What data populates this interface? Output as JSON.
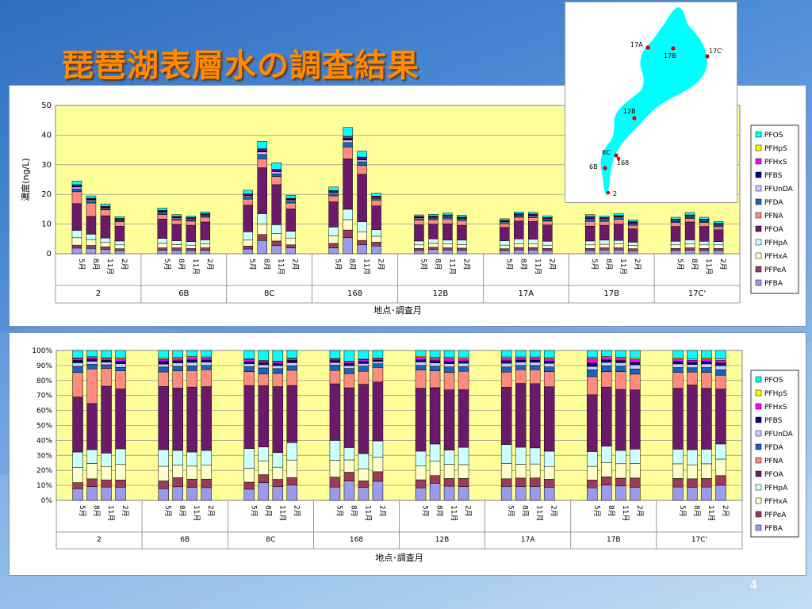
{
  "slide": {
    "title": "琵琶湖表層水の調査結果",
    "page_number": "4"
  },
  "legend_items": [
    "PFOS",
    "PFHpS",
    "PFHxS",
    "PFBS",
    "PFUnDA",
    "PFDA",
    "PFNA",
    "PFOA",
    "PFHpA",
    "PFHxA",
    "PFPeA",
    "PFBA"
  ],
  "map": {
    "labels": [
      "17A",
      "17B",
      "17C'",
      "12B",
      "8C",
      "168",
      "6B",
      "2"
    ],
    "colors": {
      "lake": "#00ffff",
      "site": "#d80000"
    }
  },
  "colors": {
    "PFBA": "#9a9aee",
    "PFPeA": "#9c3a5c",
    "PFHxA": "#ffffcc",
    "PFHpA": "#ccffff",
    "PFOA": "#6b1a6b",
    "PFNA": "#ff8a80",
    "PFDA": "#1565c0",
    "PFUnDA": "#ccccff",
    "PFBS": "#000080",
    "PFHxS": "#ff00ff",
    "PFHpS": "#ffff00",
    "PFOS": "#00ffff",
    "plot_bg": "#ffff99"
  },
  "chart_data": [
    {
      "type": "bar",
      "stacked": true,
      "ylabel": "濃度(ng/L)",
      "xlabel": "地点･調査月",
      "ylim": [
        0,
        50
      ],
      "yticks": [
        "0",
        "10",
        "20",
        "30",
        "40",
        "50"
      ],
      "legend_position": "right",
      "sites": [
        "2",
        "6B",
        "8C",
        "168",
        "12B",
        "17A",
        "17B",
        "17C'"
      ],
      "months": [
        "5月",
        "8月",
        "11月",
        "2月"
      ],
      "series": [
        {
          "name": "PFBA",
          "values": [
            1.9,
            1.8,
            1.5,
            1.1,
            1.2,
            1.2,
            1.1,
            1.2,
            1.6,
            4.5,
            2.8,
            2.0,
            2.0,
            5.5,
            3.0,
            2.6,
            1.1,
            1.5,
            1.3,
            1.2,
            1.1,
            1.3,
            1.3,
            1.1,
            1.1,
            1.3,
            1.3,
            1.0,
            1.1,
            1.2,
            1.1,
            1.1
          ]
        },
        {
          "name": "PFPeA",
          "values": [
            1.0,
            1.0,
            0.8,
            0.6,
            0.8,
            0.8,
            0.7,
            0.8,
            1.0,
            2.0,
            1.5,
            1.0,
            1.5,
            2.5,
            1.5,
            1.3,
            0.7,
            0.7,
            0.7,
            0.7,
            0.6,
            0.8,
            0.8,
            0.7,
            0.7,
            0.7,
            0.7,
            0.7,
            0.7,
            0.8,
            0.7,
            0.7
          ]
        },
        {
          "name": "PFHxA",
          "values": [
            2.5,
            2.0,
            1.5,
            1.3,
            1.5,
            1.1,
            1.1,
            1.3,
            2.0,
            3.5,
            2.5,
            2.3,
            2.5,
            3.5,
            2.8,
            2.0,
            1.2,
            1.3,
            1.3,
            1.2,
            1.2,
            1.3,
            1.3,
            1.1,
            1.2,
            1.2,
            1.3,
            1.1,
            1.2,
            1.3,
            1.2,
            1.2
          ]
        },
        {
          "name": "PFHpA",
          "values": [
            2.5,
            1.8,
            1.5,
            1.3,
            1.7,
            1.3,
            1.2,
            1.4,
            2.8,
            3.5,
            3.0,
            2.3,
            3.0,
            3.5,
            3.5,
            2.2,
            1.3,
            1.5,
            1.3,
            1.5,
            1.5,
            1.6,
            1.5,
            1.3,
            1.3,
            1.4,
            1.2,
            1.1,
            1.2,
            1.4,
            1.2,
            1.1
          ]
        },
        {
          "name": "PFOA",
          "values": [
            9.0,
            6.0,
            7.5,
            5.0,
            6.5,
            5.5,
            5.5,
            6.0,
            9.0,
            15.5,
            13.5,
            7.5,
            8.5,
            17.0,
            16.0,
            8.0,
            5.5,
            5.0,
            5.5,
            5.0,
            4.5,
            6.0,
            6.0,
            5.5,
            5.0,
            5.0,
            5.5,
            4.5,
            5.0,
            6.0,
            5.0,
            4.0
          ]
        },
        {
          "name": "PFNA",
          "values": [
            4.0,
            4.5,
            2.0,
            1.5,
            1.5,
            1.5,
            1.4,
            1.6,
            2.0,
            3.0,
            2.7,
            2.0,
            2.0,
            4.0,
            3.0,
            2.0,
            1.6,
            1.5,
            1.6,
            1.6,
            1.2,
            1.3,
            1.3,
            1.3,
            1.6,
            1.3,
            1.6,
            1.2,
            1.3,
            1.2,
            1.3,
            1.0
          ]
        },
        {
          "name": "PFDA",
          "values": [
            1.0,
            0.6,
            0.4,
            0.3,
            0.5,
            0.4,
            0.4,
            0.4,
            0.7,
            1.5,
            1.0,
            0.6,
            0.8,
            1.5,
            1.2,
            0.5,
            0.4,
            0.4,
            0.5,
            0.4,
            0.4,
            0.4,
            0.4,
            0.4,
            0.6,
            0.5,
            0.5,
            0.4,
            0.4,
            0.4,
            0.4,
            0.4
          ]
        },
        {
          "name": "PFUnDA",
          "values": [
            0.6,
            0.4,
            0.3,
            0.3,
            0.3,
            0.3,
            0.3,
            0.3,
            0.4,
            0.8,
            0.6,
            0.4,
            0.4,
            0.8,
            0.6,
            0.3,
            0.3,
            0.3,
            0.3,
            0.3,
            0.3,
            0.3,
            0.3,
            0.3,
            0.3,
            0.3,
            0.3,
            0.3,
            0.3,
            0.3,
            0.3,
            0.3
          ]
        },
        {
          "name": "PFBS",
          "values": [
            0.4,
            0.3,
            0.2,
            0.2,
            0.3,
            0.2,
            0.2,
            0.2,
            0.3,
            0.5,
            0.4,
            0.3,
            0.3,
            0.6,
            0.5,
            0.2,
            0.2,
            0.2,
            0.2,
            0.2,
            0.2,
            0.2,
            0.2,
            0.2,
            0.3,
            0.2,
            0.2,
            0.2,
            0.2,
            0.2,
            0.2,
            0.2
          ]
        },
        {
          "name": "PFHxS",
          "values": [
            0.3,
            0.2,
            0.2,
            0.2,
            0.2,
            0.2,
            0.2,
            0.2,
            0.3,
            0.4,
            0.4,
            0.2,
            0.2,
            0.5,
            0.4,
            0.2,
            0.2,
            0.2,
            0.3,
            0.2,
            0.2,
            0.2,
            0.2,
            0.2,
            0.4,
            0.2,
            0.2,
            0.2,
            0.2,
            0.2,
            0.2,
            0.2
          ]
        },
        {
          "name": "PFHpS",
          "values": [
            0.1,
            0.1,
            0.1,
            0.1,
            0.1,
            0.1,
            0.1,
            0.1,
            0.1,
            0.2,
            0.1,
            0.1,
            0.1,
            0.2,
            0.1,
            0.1,
            0.1,
            0.1,
            0.1,
            0.1,
            0.1,
            0.1,
            0.1,
            0.1,
            0.1,
            0.1,
            0.1,
            0.1,
            0.1,
            0.1,
            0.1,
            0.1
          ]
        },
        {
          "name": "PFOS",
          "values": [
            1.2,
            0.8,
            0.8,
            0.6,
            0.8,
            0.6,
            0.5,
            0.6,
            1.2,
            2.5,
            2.2,
            1.0,
            1.2,
            3.0,
            2.0,
            1.0,
            0.5,
            0.6,
            0.6,
            0.6,
            0.5,
            0.6,
            0.6,
            0.6,
            0.6,
            0.5,
            0.6,
            0.6,
            0.6,
            0.8,
            0.6,
            0.6
          ]
        }
      ]
    },
    {
      "type": "bar",
      "stacked": true,
      "percent": true,
      "xlabel": "地点･調査月",
      "ylim": [
        0,
        100
      ],
      "yticks": [
        "0%",
        "10%",
        "20%",
        "30%",
        "40%",
        "50%",
        "60%",
        "70%",
        "80%",
        "90%",
        "100%"
      ],
      "legend_position": "right",
      "sites": [
        "2",
        "6B",
        "8C",
        "168",
        "12B",
        "17A",
        "17B",
        "17C'"
      ],
      "months": [
        "5月",
        "8月",
        "11月",
        "2月"
      ],
      "note": "same series as chart 1, normalized to 100%"
    }
  ]
}
